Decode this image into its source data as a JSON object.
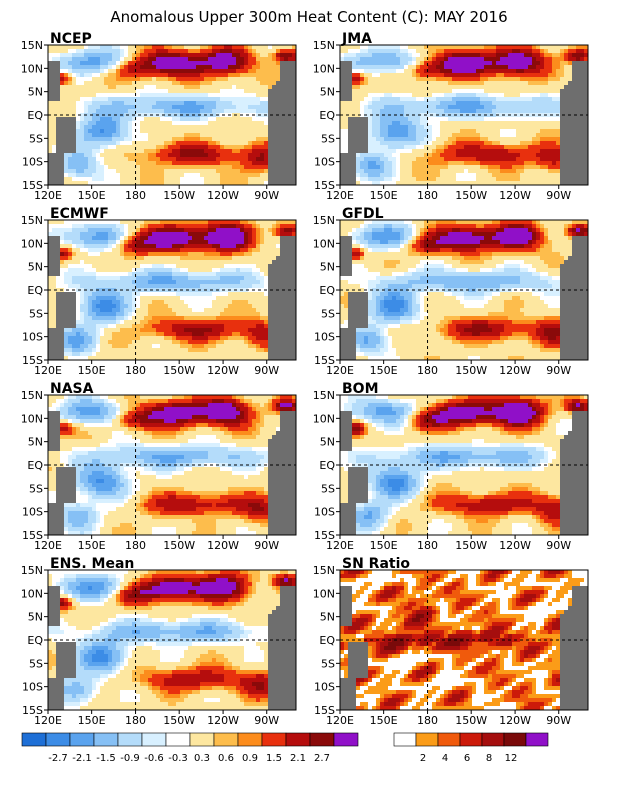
{
  "title": "Anomalous Upper 300m Heat Content (C): MAY 2016",
  "lon_labels": [
    "120E",
    "150E",
    "180",
    "150W",
    "120W",
    "90W"
  ],
  "lat_labels": [
    "15N",
    "10N",
    "5N",
    "EQ",
    "5S",
    "10S",
    "15S"
  ],
  "panels": [
    {
      "label": "NCEP",
      "kind": "anomaly"
    },
    {
      "label": "JMA",
      "kind": "anomaly"
    },
    {
      "label": "ECMWF",
      "kind": "anomaly"
    },
    {
      "label": "GFDL",
      "kind": "anomaly"
    },
    {
      "label": "NASA",
      "kind": "anomaly"
    },
    {
      "label": "BOM",
      "kind": "anomaly"
    },
    {
      "label": "ENS. Mean",
      "kind": "anomaly"
    },
    {
      "label": "SN Ratio",
      "kind": "ratio"
    }
  ],
  "anomaly_scale": {
    "labels": [
      "-2.7",
      "-2.1",
      "-1.5",
      "-0.9",
      "-0.6",
      "-0.3",
      "0.3",
      "0.6",
      "0.9",
      "1.5",
      "2.1",
      "2.7"
    ],
    "colors": [
      "#1e6fd6",
      "#3c8ce6",
      "#5aa3ee",
      "#86c0f5",
      "#b4dcfa",
      "#d8f0ff",
      "#ffffff",
      "#fde7a0",
      "#fdbd4c",
      "#fc8c1c",
      "#e8300e",
      "#b50d0d",
      "#8a0a0a",
      "#9010c8"
    ]
  },
  "ratio_scale": {
    "labels": [
      "2",
      "4",
      "6",
      "8",
      "12"
    ],
    "colors": [
      "#ffffff",
      "#fb9c18",
      "#f05a0c",
      "#cc1a0a",
      "#a50e0e",
      "#7a0a0a",
      "#9010c8"
    ]
  },
  "land_color": "#6e6e6e"
}
